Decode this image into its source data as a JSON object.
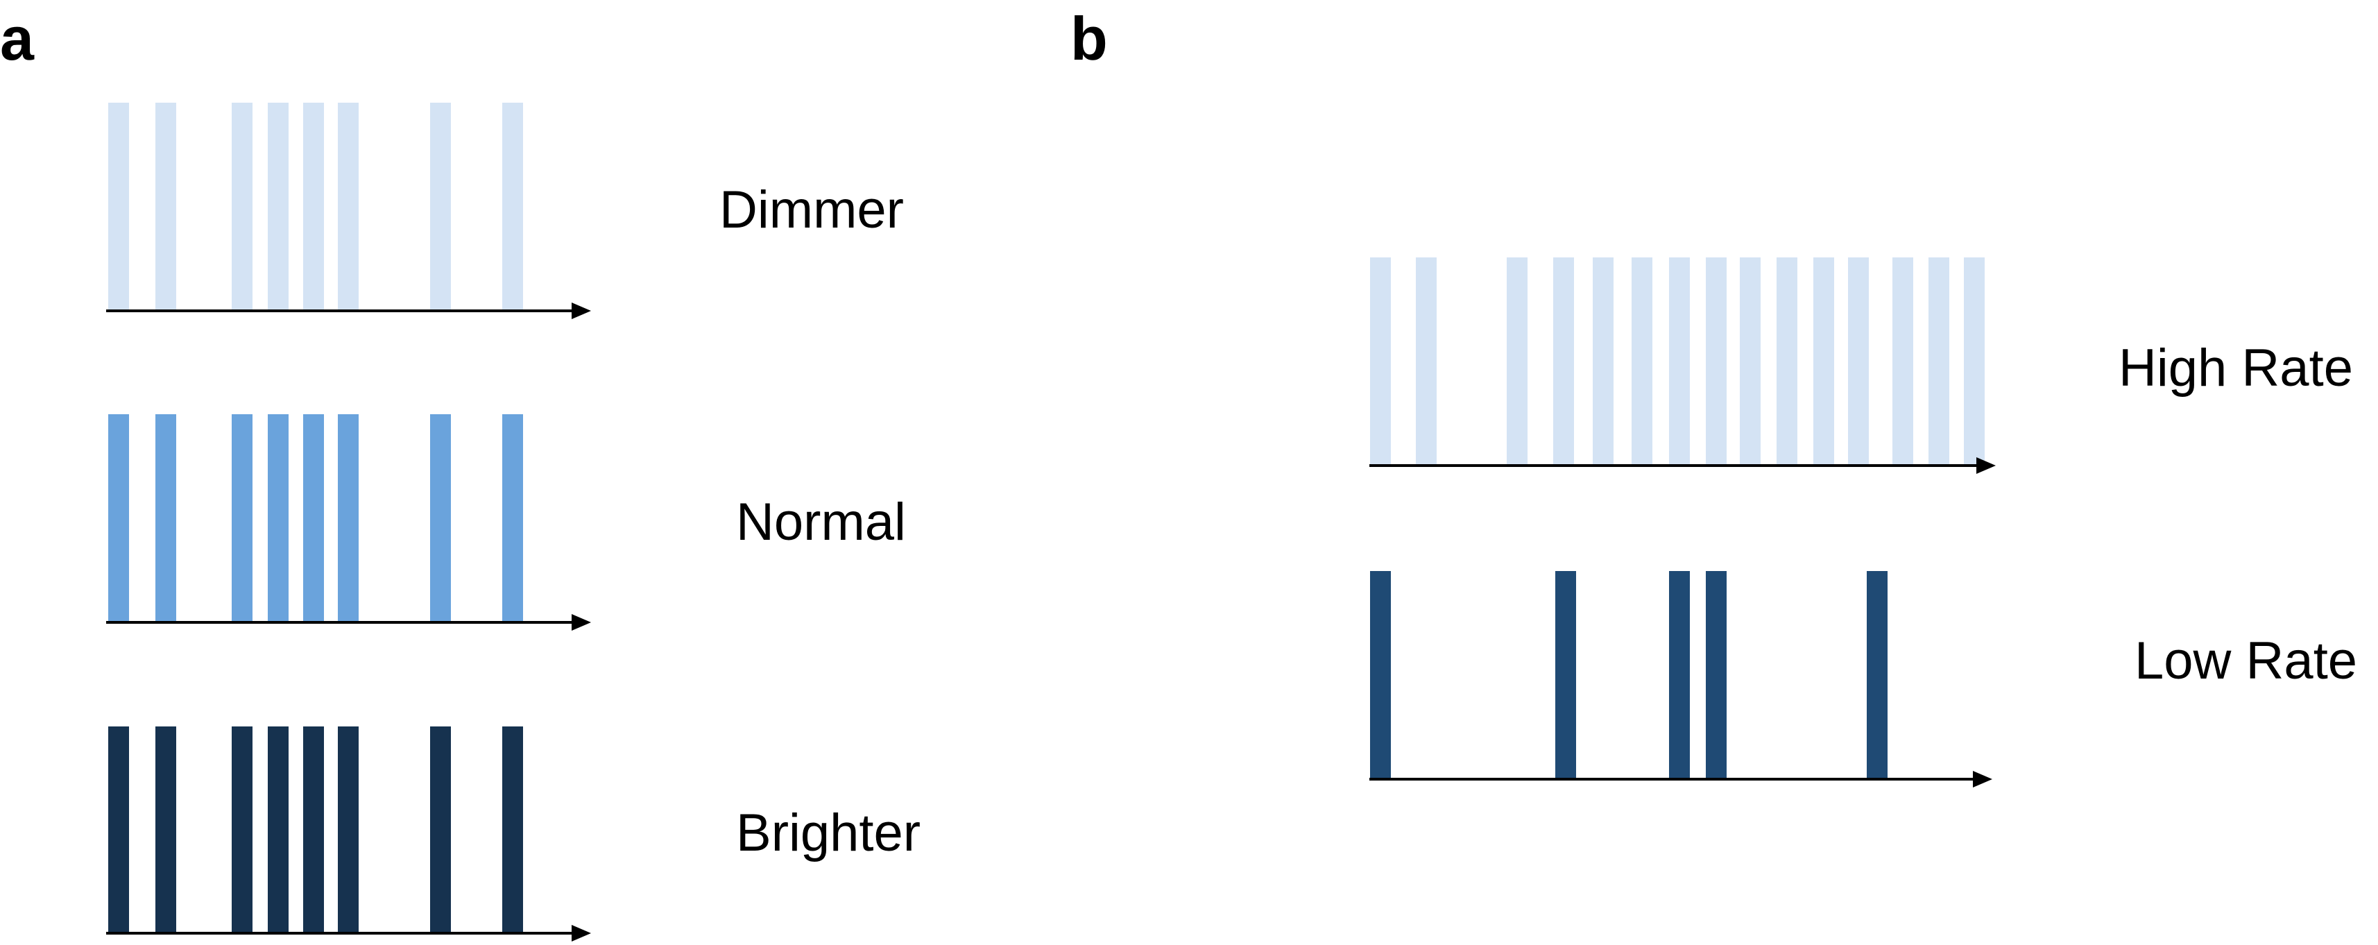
{
  "panels": [
    {
      "letter": "a",
      "rows": [
        {
          "label": "Dimmer",
          "color": "#d4e3f4"
        },
        {
          "label": "Normal",
          "color": "#6aa3dc"
        },
        {
          "label": "Brighter",
          "color": "#16324f"
        }
      ]
    },
    {
      "letter": "b",
      "rows": [
        {
          "label": "High Rate",
          "color": "#d4e3f4"
        },
        {
          "label": "Low Rate",
          "color": "#1f4a74"
        }
      ]
    }
  ],
  "axis_color": "#000000"
}
